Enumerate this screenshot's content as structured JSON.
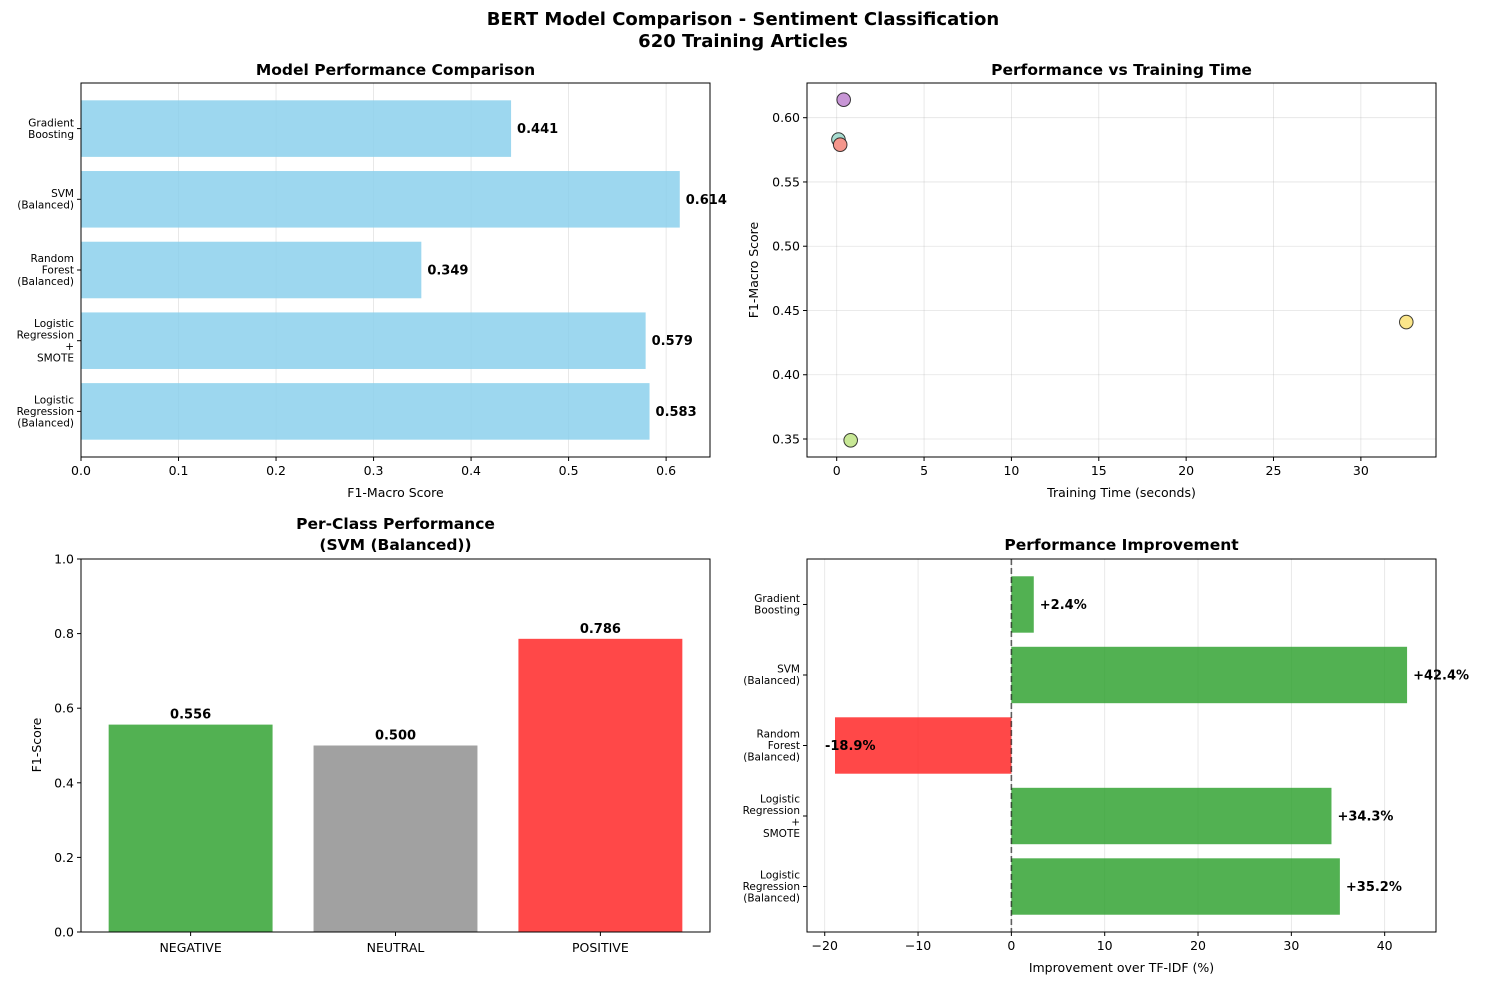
{
  "figure": {
    "title_line1": "BERT Model Comparison - Sentiment Classification",
    "title_line2": "620 Training Articles"
  },
  "chart_data": [
    {
      "type": "bar",
      "orientation": "horizontal",
      "title": "Model Performance Comparison",
      "xlabel": "F1-Macro Score",
      "ylabel": "",
      "categories": [
        [
          "Logistic",
          "Regression",
          "(Balanced)"
        ],
        [
          "Logistic",
          "Regression",
          "+",
          "SMOTE"
        ],
        [
          "Random",
          "Forest",
          "(Balanced)"
        ],
        [
          "SVM",
          "(Balanced)"
        ],
        [
          "Gradient",
          "Boosting"
        ]
      ],
      "values": [
        0.583,
        0.579,
        0.349,
        0.614,
        0.441
      ],
      "value_labels": [
        "0.583",
        "0.579",
        "0.349",
        "0.614",
        "0.441"
      ],
      "xlim": [
        0,
        0.645
      ],
      "xticks": [
        0.0,
        0.1,
        0.2,
        0.3,
        0.4,
        0.5,
        0.6
      ],
      "xtick_labels": [
        "0.0",
        "0.1",
        "0.2",
        "0.3",
        "0.4",
        "0.5",
        "0.6"
      ],
      "grid": "x",
      "color": "#87ceeb"
    },
    {
      "type": "scatter",
      "title": "Performance vs Training Time",
      "xlabel": "Training Time (seconds)",
      "ylabel": "F1-Macro Score",
      "points": [
        {
          "x": 0.4,
          "y": 0.614,
          "color": "#c896d6"
        },
        {
          "x": 0.1,
          "y": 0.583,
          "color": "#a8dcd0"
        },
        {
          "x": 0.2,
          "y": 0.579,
          "color": "#f4968c"
        },
        {
          "x": 32.6,
          "y": 0.441,
          "color": "#fbe68a"
        },
        {
          "x": 0.8,
          "y": 0.349,
          "color": "#c8e896"
        }
      ],
      "xlim": [
        -1.7,
        34.3
      ],
      "ylim": [
        0.336,
        0.627
      ],
      "xticks": [
        0,
        5,
        10,
        15,
        20,
        25,
        30
      ],
      "xtick_labels": [
        "0",
        "5",
        "10",
        "15",
        "20",
        "25",
        "30"
      ],
      "yticks": [
        0.35,
        0.4,
        0.45,
        0.5,
        0.55,
        0.6
      ],
      "ytick_labels": [
        "0.35",
        "0.40",
        "0.45",
        "0.50",
        "0.55",
        "0.60"
      ],
      "grid": "both"
    },
    {
      "type": "bar",
      "orientation": "vertical",
      "title_line1": "Per-Class Performance",
      "title_line2": "(SVM (Balanced))",
      "xlabel": "",
      "ylabel": "F1-Score",
      "categories": [
        "NEGATIVE",
        "NEUTRAL",
        "POSITIVE"
      ],
      "values": [
        0.556,
        0.5,
        0.786
      ],
      "value_labels": [
        "0.556",
        "0.500",
        "0.786"
      ],
      "colors": [
        "#2ca02c",
        "#8c8c8c",
        "#ff2020"
      ],
      "ylim": [
        0,
        1.0
      ],
      "yticks": [
        0.0,
        0.2,
        0.4,
        0.6,
        0.8,
        1.0
      ],
      "ytick_labels": [
        "0.0",
        "0.2",
        "0.4",
        "0.6",
        "0.8",
        "1.0"
      ],
      "grid": "none"
    },
    {
      "type": "bar",
      "orientation": "horizontal",
      "title": "Performance Improvement",
      "xlabel": "Improvement over TF-IDF (%)",
      "ylabel": "",
      "categories": [
        [
          "Logistic",
          "Regression",
          "(Balanced)"
        ],
        [
          "Logistic",
          "Regression",
          "+",
          "SMOTE"
        ],
        [
          "Random",
          "Forest",
          "(Balanced)"
        ],
        [
          "SVM",
          "(Balanced)"
        ],
        [
          "Gradient",
          "Boosting"
        ]
      ],
      "values": [
        35.2,
        34.3,
        -18.9,
        42.4,
        2.4
      ],
      "value_labels": [
        "+35.2%",
        "+34.3%",
        "-18.9%",
        "+42.4%",
        "+2.4%"
      ],
      "positive_color": "#2ca02c",
      "negative_color": "#ff2020",
      "xlim": [
        -21.9,
        45.5
      ],
      "xticks": [
        -20,
        -10,
        0,
        10,
        20,
        30,
        40
      ],
      "xtick_labels": [
        "−20",
        "−10",
        "0",
        "10",
        "20",
        "30",
        "40"
      ],
      "reference_line": 0,
      "grid": "x"
    }
  ]
}
